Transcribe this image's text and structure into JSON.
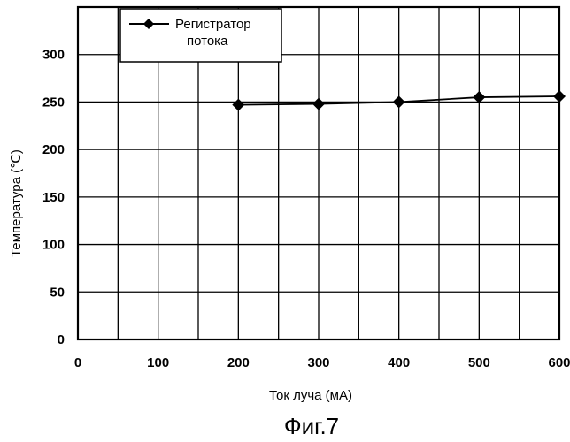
{
  "chart_data": {
    "type": "line",
    "xlabel": "Ток луча (мА)",
    "ylabel": "Температура (℃)",
    "xlim": [
      0,
      600
    ],
    "ylim": [
      0,
      350
    ],
    "x_ticks": [
      0,
      100,
      200,
      300,
      400,
      500,
      600
    ],
    "y_ticks": [
      0,
      50,
      100,
      150,
      200,
      250,
      300
    ],
    "grid": true,
    "legend_position": "top-left",
    "series": [
      {
        "name": "Регистратор потока",
        "name_lines": [
          "Регистратор",
          "потока"
        ],
        "x": [
          200,
          300,
          400,
          500,
          600
        ],
        "y": [
          247,
          248,
          250,
          255,
          256
        ],
        "marker": "diamond",
        "color": "#000000"
      }
    ]
  },
  "caption": "Фиг.7"
}
